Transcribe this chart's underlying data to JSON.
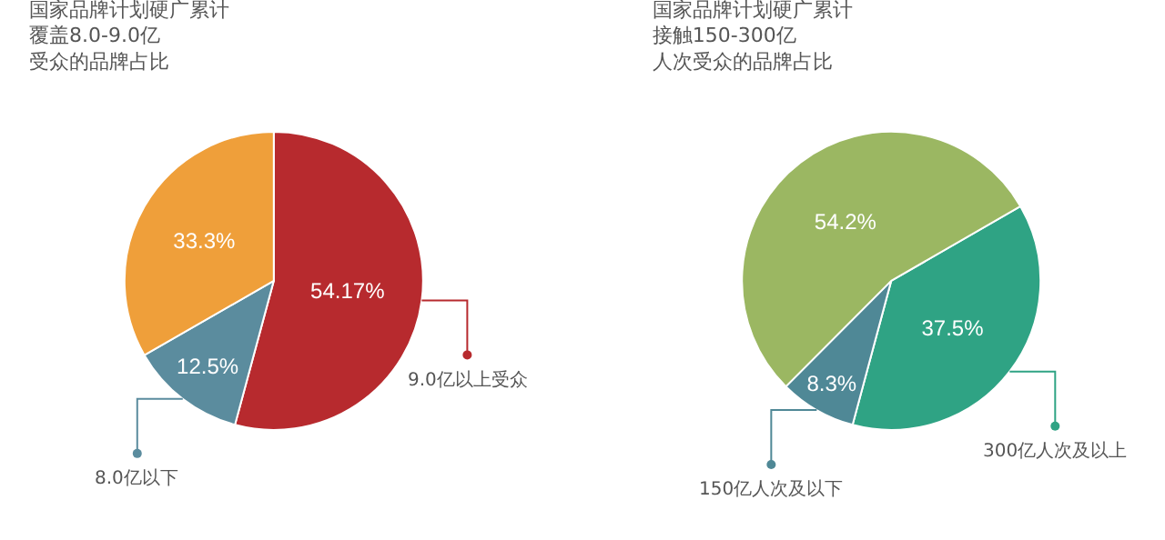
{
  "chart_data": [
    {
      "type": "pie",
      "title": "国家品牌计划硬广累计覆盖8.0-9.0亿受众的品牌占比",
      "categories": [
        "9.0亿以上受众",
        "8.0亿以下",
        null
      ],
      "values": [
        54.17,
        12.5,
        33.3
      ],
      "colors": [
        "#b72a2e",
        "#5b8c9e",
        "#ef9f3a"
      ],
      "value_labels": [
        "54.17%",
        "12.5%",
        "33.3%"
      ],
      "legend": "bottom"
    },
    {
      "type": "pie",
      "title": "国家品牌计划硬广累计接触150-300亿人次受众的品牌占比",
      "categories": [
        "300亿人次及以上",
        "150亿人次及以下",
        null
      ],
      "values": [
        37.5,
        8.3,
        54.2
      ],
      "colors": [
        "#2fa384",
        "#4f8896",
        "#9bb762"
      ],
      "value_labels": [
        "37.5%",
        "8.3%",
        "54.2%"
      ],
      "legend": "bottom"
    }
  ]
}
